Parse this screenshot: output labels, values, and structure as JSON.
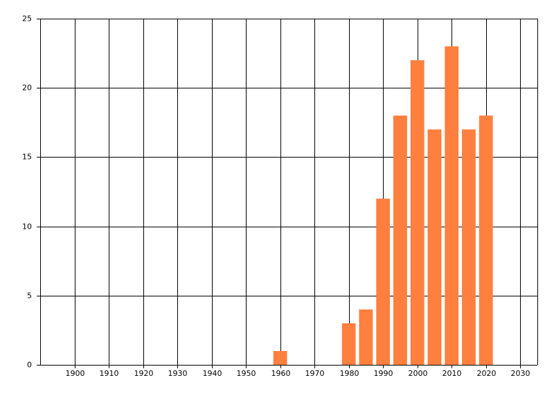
{
  "chart_data": {
    "type": "bar",
    "x": [
      1960,
      1980,
      1985,
      1990,
      1995,
      2000,
      2005,
      2010,
      2015,
      2020
    ],
    "values": [
      1,
      3,
      4,
      12,
      18,
      22,
      17,
      23,
      17,
      18
    ],
    "color": "#ff7f3f",
    "xlim": [
      1890,
      2035
    ],
    "xticks": [
      1900,
      1910,
      1920,
      1930,
      1940,
      1950,
      1960,
      1970,
      1980,
      1990,
      2000,
      2010,
      2020,
      2030
    ],
    "ylim": [
      0,
      25
    ],
    "yticks": [
      0,
      5,
      10,
      15,
      20,
      25
    ],
    "grid": true
  }
}
